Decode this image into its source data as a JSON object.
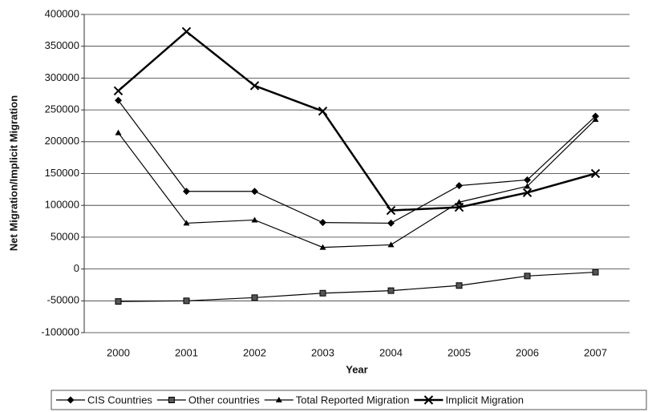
{
  "chart_data": {
    "type": "line",
    "xlabel": "Year",
    "ylabel": "Net Migration/Implicit Migration",
    "categories": [
      "2000",
      "2001",
      "2002",
      "2003",
      "2004",
      "2005",
      "2006",
      "2007"
    ],
    "series": [
      {
        "name": "CIS Countries",
        "color": "#000000",
        "marker": "diamond",
        "values": [
          265000,
          122000,
          122000,
          73000,
          72000,
          131000,
          140000,
          240000
        ]
      },
      {
        "name": "Other countries",
        "color": "#000000",
        "marker": "square",
        "values": [
          -51000,
          -50000,
          -45000,
          -38000,
          -34000,
          -26000,
          -11000,
          -5000
        ]
      },
      {
        "name": "Total Reported Migration",
        "color": "#000000",
        "marker": "triangle",
        "values": [
          214000,
          72000,
          77000,
          34000,
          38000,
          105000,
          130000,
          235000
        ]
      },
      {
        "name": "Implicit Migration",
        "color": "#000000",
        "marker": "x",
        "values": [
          280000,
          373000,
          288000,
          248000,
          92000,
          97000,
          120000,
          150000
        ]
      }
    ],
    "ylim": [
      -100000,
      400000
    ],
    "yticks": [
      -100000,
      -50000,
      0,
      50000,
      100000,
      150000,
      200000,
      250000,
      300000,
      350000,
      400000
    ],
    "grid": true,
    "legend": "bottom"
  }
}
